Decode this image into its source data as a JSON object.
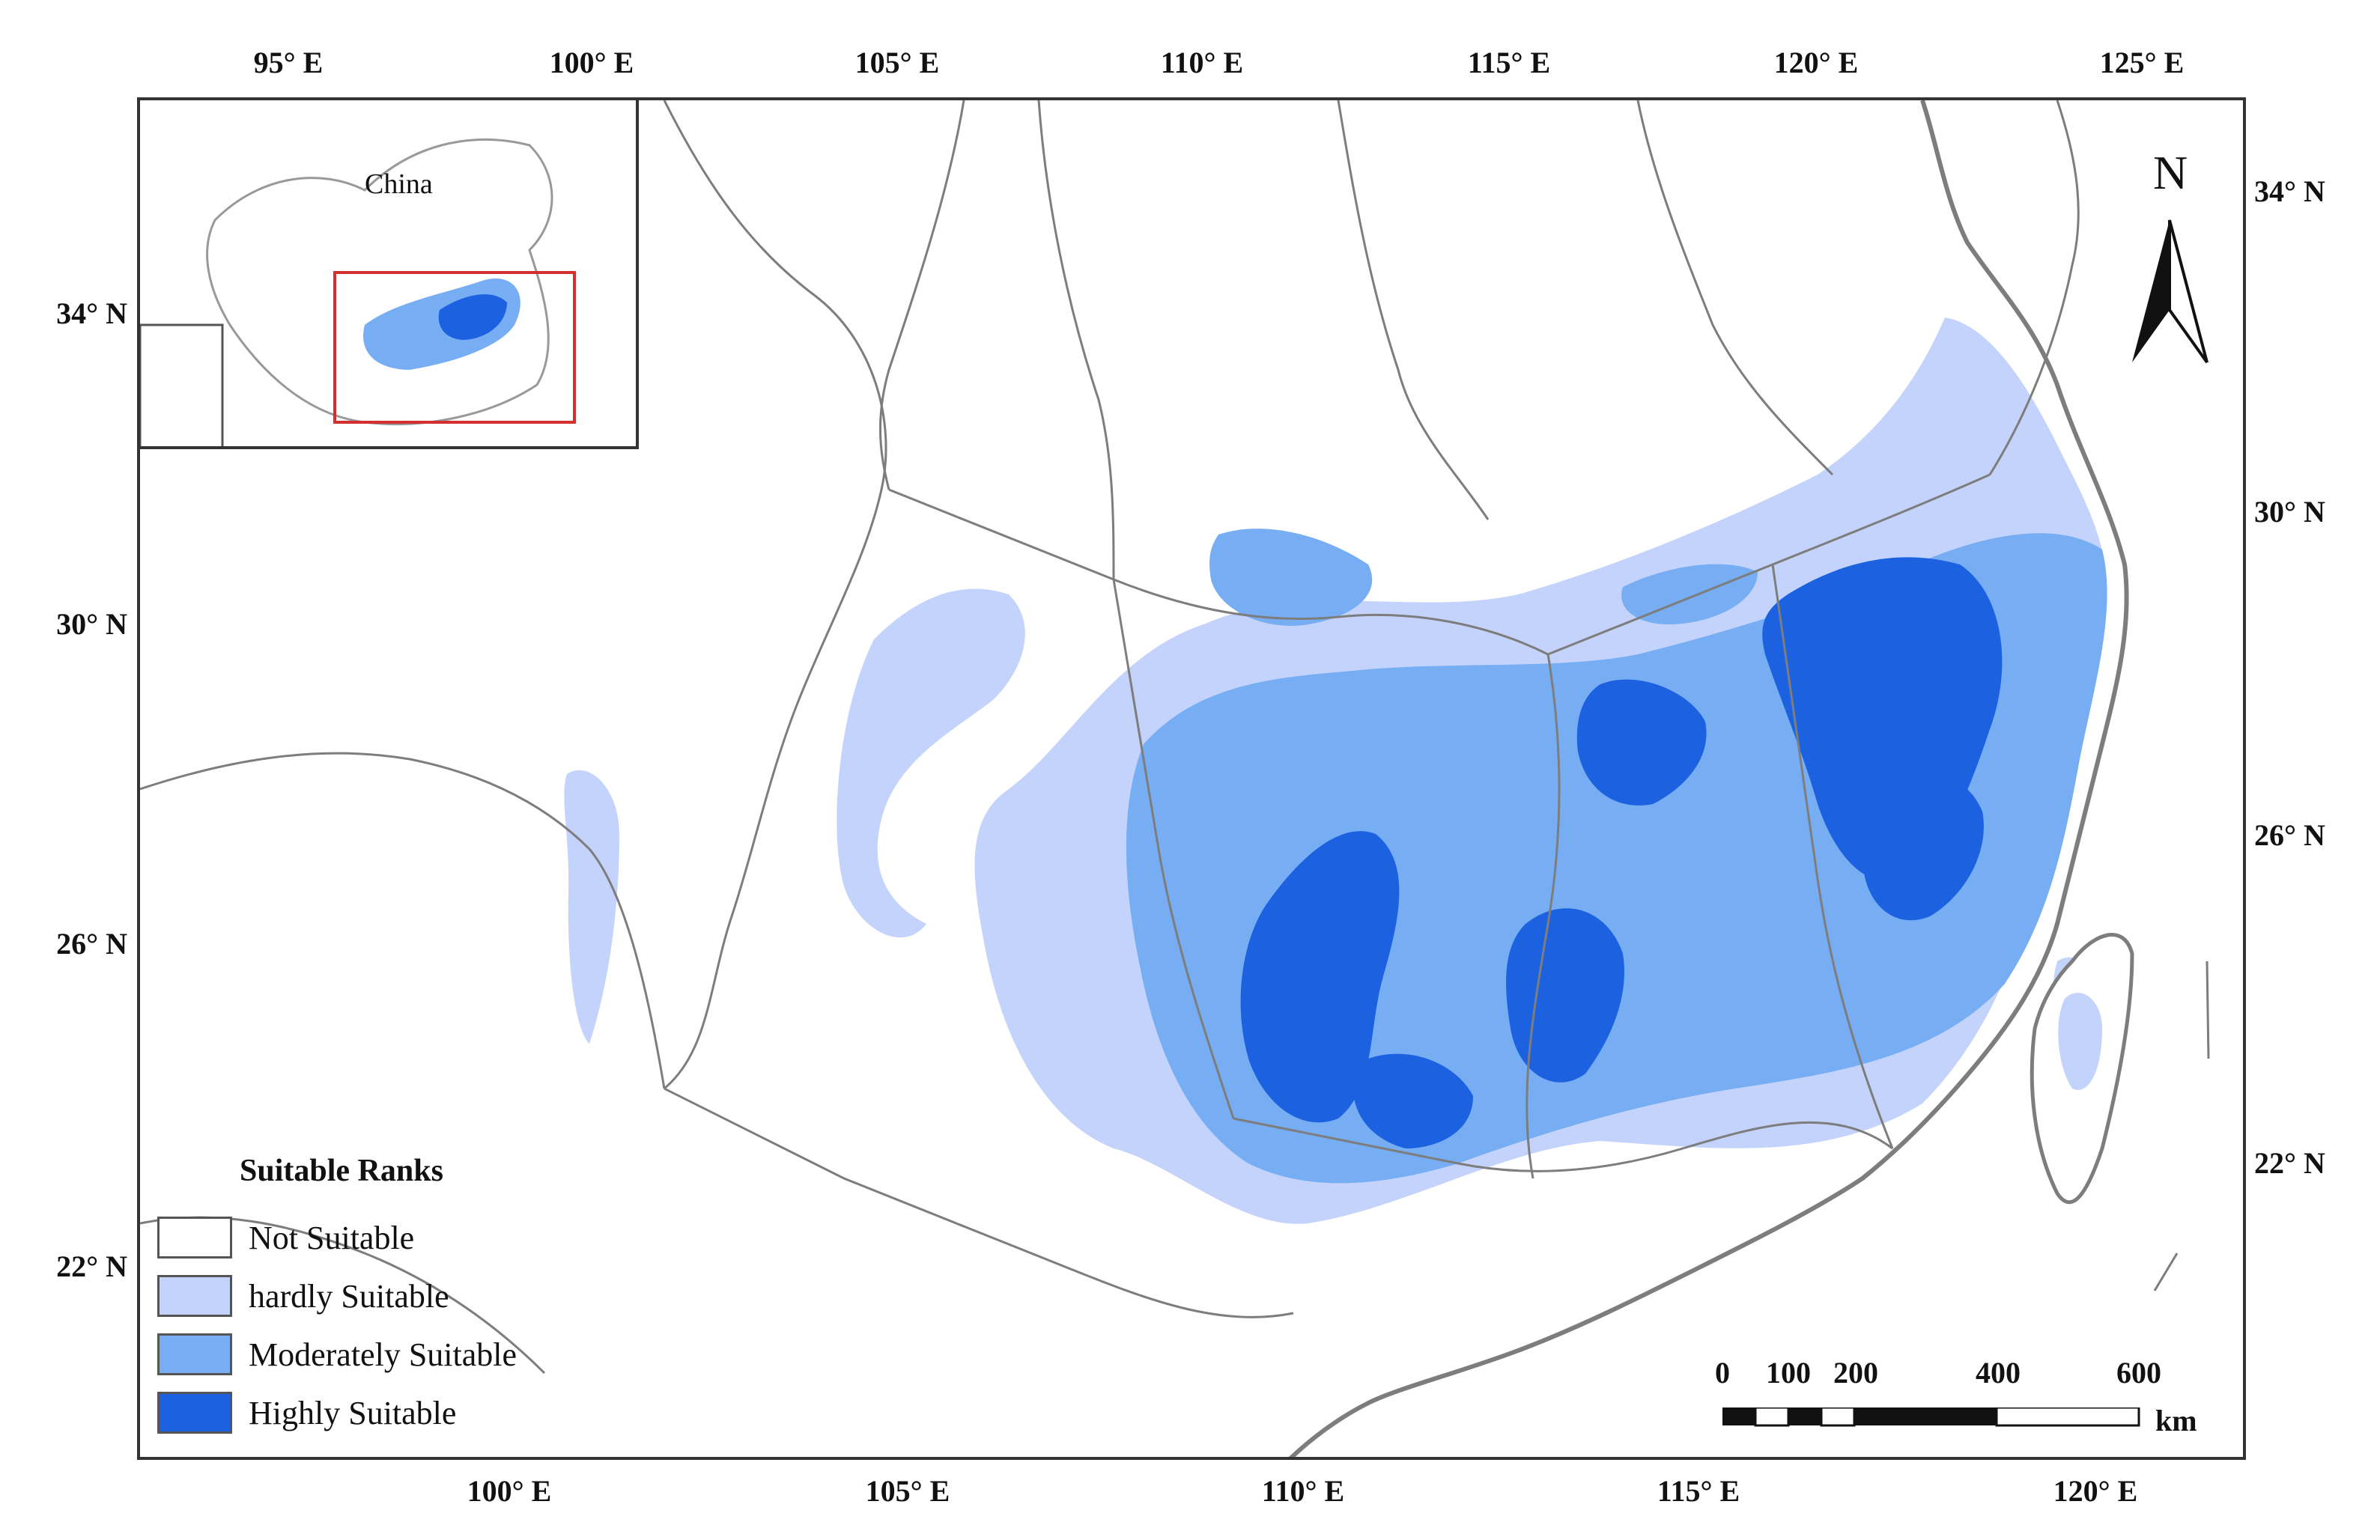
{
  "axes": {
    "top_ticks": [
      "95° E",
      "100° E",
      "105° E",
      "110° E",
      "115° E",
      "120° E",
      "125° E"
    ],
    "bottom_ticks": [
      "100° E",
      "105° E",
      "110° E",
      "115° E",
      "120° E"
    ],
    "left_ticks": [
      "34° N",
      "30° N",
      "26° N",
      "22° N"
    ],
    "right_ticks": [
      "34° N",
      "30° N",
      "26° N",
      "22° N"
    ]
  },
  "inset": {
    "label": "China"
  },
  "legend": {
    "title": "Suitable Ranks",
    "items": [
      {
        "label": "Not Suitable",
        "color": "#ffffff"
      },
      {
        "label": "hardly Suitable",
        "color": "#c3d3fb"
      },
      {
        "label": "Moderately Suitable",
        "color": "#77aef3"
      },
      {
        "label": "Highly Suitable",
        "color": "#1c62e0"
      }
    ]
  },
  "north_arrow": {
    "label": "N"
  },
  "scale_bar": {
    "ticks": [
      "0",
      "100",
      "200",
      "400",
      "600"
    ],
    "unit": "km"
  },
  "colors": {
    "hardly": "#c3d3fb",
    "moderate": "#77aef3",
    "high": "#1c62e0",
    "boundary": "#7d7d7d",
    "frame": "#333333"
  }
}
